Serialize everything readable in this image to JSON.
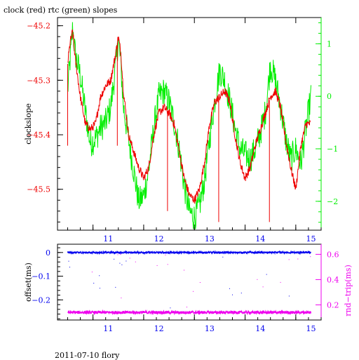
{
  "title": "clock (red) rtc (green) slopes",
  "footer": "2011-07-10 flory",
  "colors": {
    "clock": "#ee0000",
    "rtc": "#00ee00",
    "offset": "#0000ee",
    "roundtrip": "#ee00ee",
    "axis": "#000000"
  },
  "chart_data": [
    {
      "type": "line",
      "title": "clock (red) rtc (green) slopes",
      "xlabel": "",
      "ylabel": "clockslope",
      "ylabel_right": "",
      "xlim": [
        10.3,
        15.5
      ],
      "ylim": [
        -45.575,
        -45.185
      ],
      "ylim_right": [
        -2.55,
        1.5
      ],
      "x_ticks": [
        11,
        12,
        13,
        14,
        15
      ],
      "y_ticks": [
        -45.2,
        -45.3,
        -45.4,
        -45.5
      ],
      "y_ticks_right": [
        1,
        0,
        -1,
        -2
      ],
      "grid": false,
      "series": [
        {
          "axis": "left",
          "color": "#ee0000",
          "x": [
            10.5,
            10.55,
            10.6,
            10.65,
            10.75,
            10.85,
            10.95,
            11.05,
            11.15,
            11.25,
            11.35,
            11.45,
            11.5,
            11.55,
            11.6,
            11.7,
            11.8,
            11.9,
            12.0,
            12.1,
            12.2,
            12.3,
            12.4,
            12.5,
            12.6,
            12.7,
            12.8,
            12.9,
            13.0,
            13.1,
            13.2,
            13.3,
            13.4,
            13.5,
            13.6,
            13.7,
            13.8,
            13.9,
            14.0,
            14.1,
            14.2,
            14.3,
            14.4,
            14.5,
            14.6,
            14.7,
            14.8,
            14.9,
            15.0,
            15.1,
            15.2,
            15.3
          ],
          "y": [
            -45.27,
            -45.23,
            -45.21,
            -45.26,
            -45.33,
            -45.38,
            -45.39,
            -45.38,
            -45.33,
            -45.31,
            -45.3,
            -45.25,
            -45.22,
            -45.25,
            -45.32,
            -45.4,
            -45.43,
            -45.46,
            -45.48,
            -45.46,
            -45.4,
            -45.36,
            -45.35,
            -45.36,
            -45.38,
            -45.43,
            -45.48,
            -45.51,
            -45.52,
            -45.5,
            -45.45,
            -45.38,
            -45.34,
            -45.33,
            -45.32,
            -45.34,
            -45.4,
            -45.45,
            -45.48,
            -45.46,
            -45.42,
            -45.39,
            -45.36,
            -45.33,
            -45.32,
            -45.35,
            -45.41,
            -45.46,
            -45.5,
            -45.42,
            -45.38,
            -45.38
          ],
          "spikes": [
            {
              "x": 10.5,
              "y": -45.42
            },
            {
              "x": 11.48,
              "y": -45.42
            },
            {
              "x": 12.47,
              "y": -45.54
            },
            {
              "x": 13.48,
              "y": -45.56
            },
            {
              "x": 14.48,
              "y": -45.56
            }
          ]
        },
        {
          "axis": "right",
          "color": "#00ee00",
          "x": [
            10.5,
            10.55,
            10.6,
            10.65,
            10.75,
            10.85,
            10.95,
            11.05,
            11.15,
            11.25,
            11.35,
            11.45,
            11.5,
            11.55,
            11.6,
            11.7,
            11.8,
            11.9,
            12.0,
            12.1,
            12.2,
            12.3,
            12.4,
            12.5,
            12.6,
            12.7,
            12.8,
            12.9,
            13.0,
            13.1,
            13.2,
            13.3,
            13.4,
            13.5,
            13.6,
            13.7,
            13.8,
            13.9,
            14.0,
            14.1,
            14.2,
            14.3,
            14.4,
            14.5,
            14.6,
            14.7,
            14.8,
            14.9,
            15.0,
            15.1,
            15.2,
            15.3
          ],
          "y": [
            0.1,
            0.7,
            1.3,
            0.8,
            0.4,
            -0.3,
            -0.9,
            -0.8,
            -0.6,
            -0.5,
            -0.2,
            0.6,
            1.1,
            0.6,
            -0.2,
            -0.8,
            -1.4,
            -2.0,
            -1.9,
            -1.4,
            -0.6,
            0.0,
            0.1,
            -0.1,
            -0.5,
            -1.0,
            -1.7,
            -2.2,
            -2.3,
            -2.1,
            -1.6,
            -0.8,
            -0.1,
            0.5,
            0.3,
            -0.1,
            -0.6,
            -1.0,
            -1.1,
            -1.2,
            -1.0,
            -0.7,
            -0.3,
            0.6,
            0.3,
            -0.2,
            -0.8,
            -1.2,
            -1.0,
            -1.3,
            -0.6,
            0.0
          ]
        }
      ]
    },
    {
      "type": "scatter",
      "xlabel": "",
      "ylabel": "offset(ms)",
      "ylabel_right": "rnd−trip(ms)",
      "xlim": [
        10.3,
        15.5
      ],
      "ylim": [
        -0.285,
        0.035
      ],
      "ylim_right": [
        0.08,
        0.68
      ],
      "x_ticks": [
        11,
        12,
        13,
        14,
        15
      ],
      "y_ticks": [
        0,
        -0.1,
        -0.2
      ],
      "y_ticks_right": [
        0.6,
        0.4,
        0.2
      ],
      "grid": false,
      "series": [
        {
          "axis": "left",
          "color": "#0000ee",
          "x_range": [
            10.5,
            15.3
          ],
          "level": 0.0,
          "spread": 0.004
        },
        {
          "axis": "right",
          "color": "#ee00ee",
          "x_range": [
            10.5,
            15.3
          ],
          "level": 0.14,
          "spread": 0.012
        }
      ]
    }
  ]
}
